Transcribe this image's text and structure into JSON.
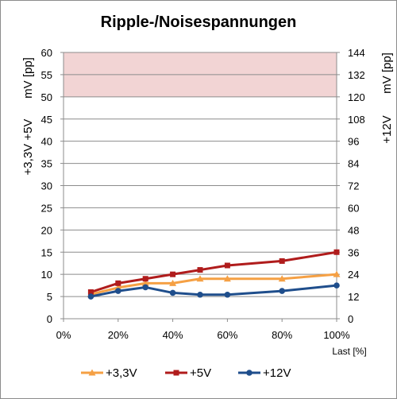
{
  "chart_data": {
    "type": "line",
    "title": "Ripple-/Noisespannungen",
    "xlabel": "Last [%]",
    "ylabel_left_rail": "+3,3V +5V",
    "ylabel_left_unit": "mV [pp]",
    "ylabel_right_rail": "+12V",
    "ylabel_right_unit": "mV [pp]",
    "x_ticks": [
      "0%",
      "20%",
      "40%",
      "60%",
      "80%",
      "100%"
    ],
    "y_left_ticks": [
      "0",
      "5",
      "10",
      "15",
      "20",
      "25",
      "30",
      "35",
      "40",
      "45",
      "50",
      "55",
      "60"
    ],
    "y_right_ticks": [
      "0",
      "12",
      "24",
      "36",
      "48",
      "60",
      "72",
      "84",
      "96",
      "108",
      "120",
      "132",
      "144"
    ],
    "xlim": [
      0,
      100
    ],
    "ylim_left": [
      0,
      60
    ],
    "ylim_right": [
      0,
      144
    ],
    "grid": true,
    "limit_band_left": [
      50,
      60
    ],
    "limit_band_color": "#f2d4d4",
    "x": [
      10,
      20,
      30,
      40,
      50,
      60,
      80,
      100
    ],
    "series": [
      {
        "name": "+3,3V",
        "axis": "left",
        "color": "#f5a044",
        "marker": "triangle",
        "values": [
          5.5,
          7,
          8,
          8,
          9,
          9,
          9,
          10
        ]
      },
      {
        "name": "+5V",
        "axis": "left",
        "color": "#b01c1c",
        "marker": "square",
        "values": [
          6,
          8,
          9,
          10,
          11,
          12,
          13,
          15
        ]
      },
      {
        "name": "+12V",
        "axis": "right",
        "color": "#1f4e8c",
        "marker": "circle",
        "values": [
          12,
          15,
          17,
          14,
          13,
          13,
          15,
          18
        ]
      }
    ],
    "legend_position": "bottom"
  }
}
